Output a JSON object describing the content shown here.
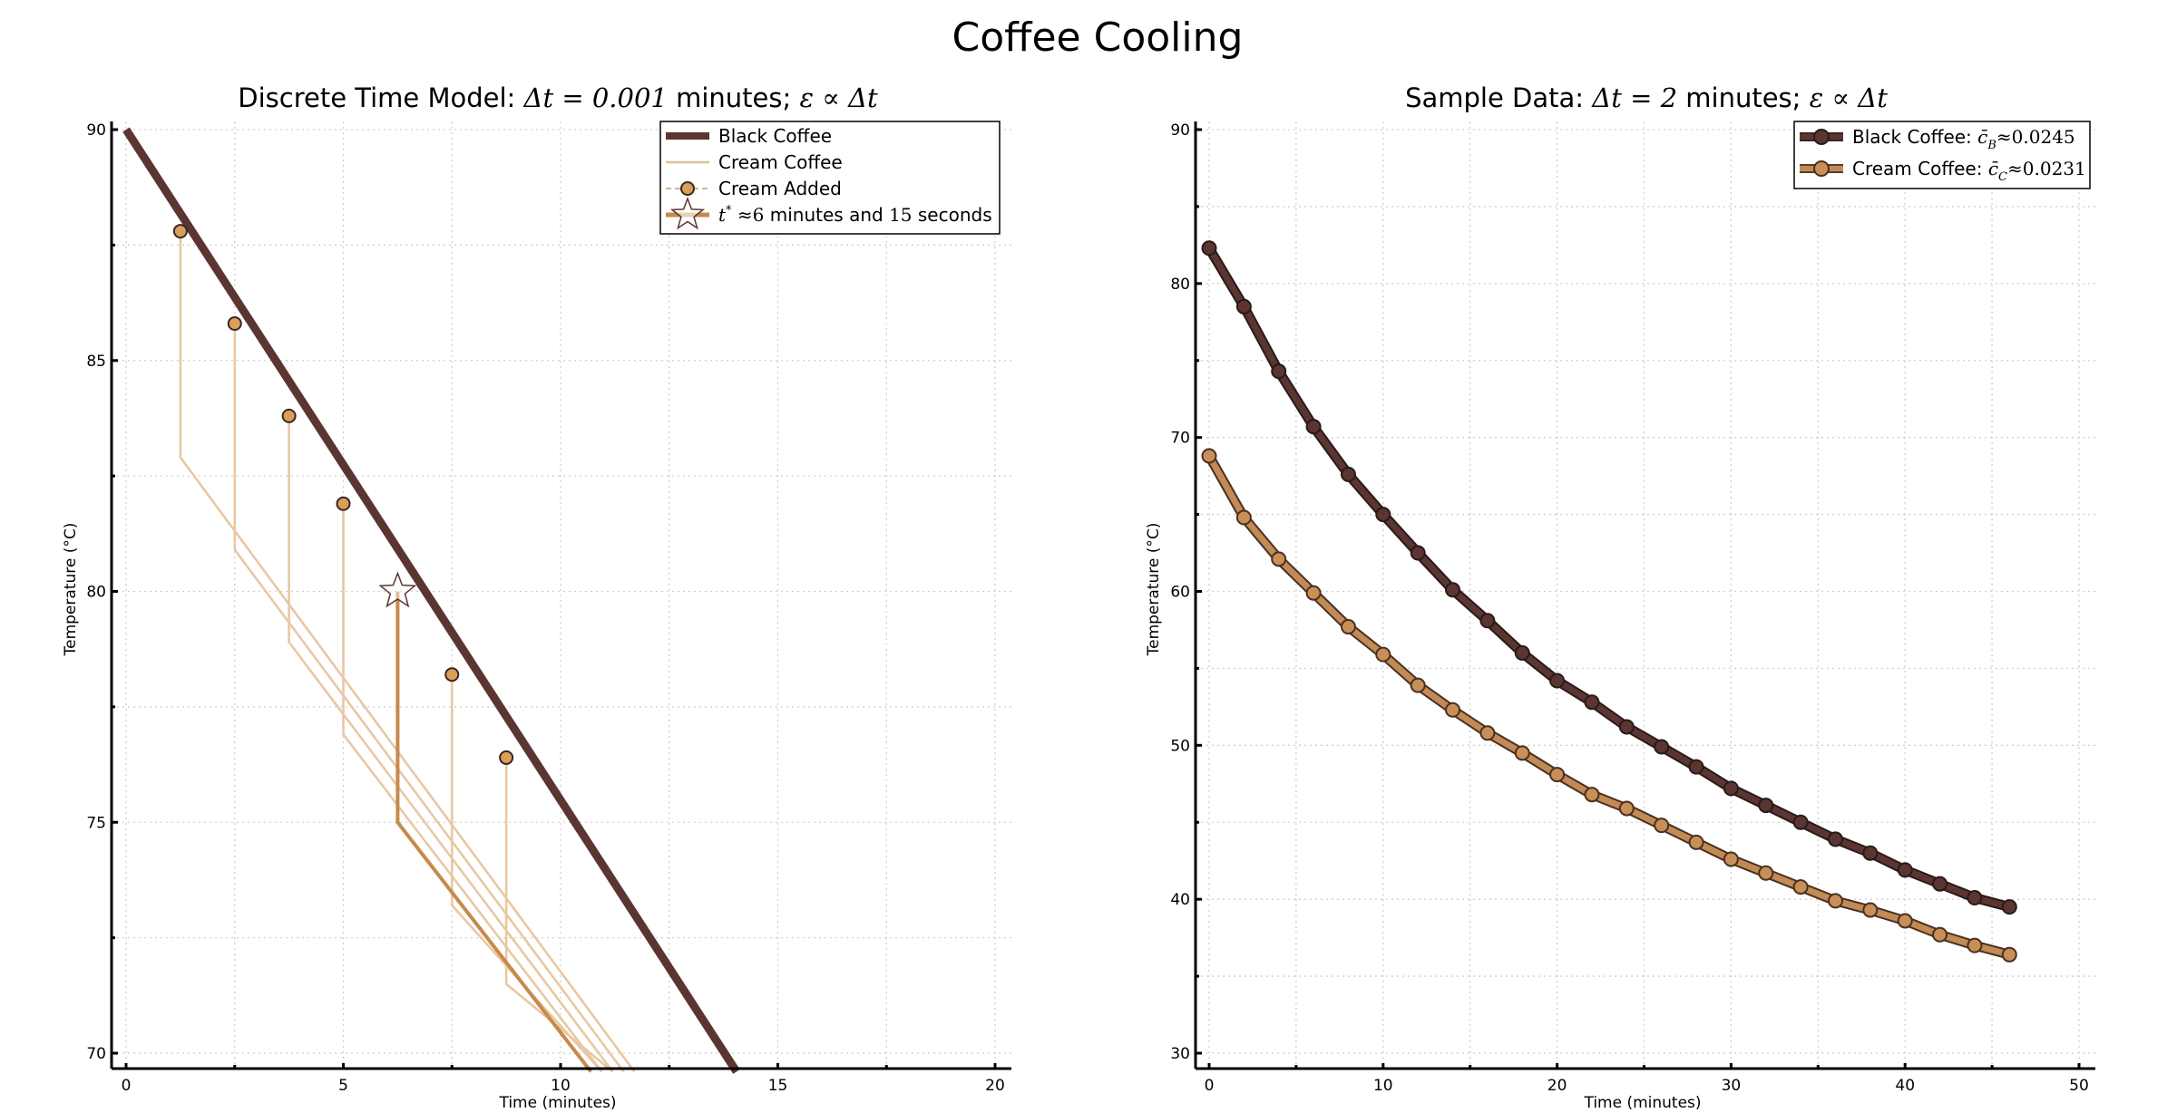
{
  "figure": {
    "title": "Coffee Cooling"
  },
  "chart_data": [
    {
      "type": "line",
      "title": "Discrete Time Model: Δt = 0.001 minutes; ε ∝ Δt",
      "title_parts": {
        "prefix": "Discrete Time Model: ",
        "math1": "Δt = 0.001",
        "middle": " minutes; ",
        "math2": "ε ∝ Δt"
      },
      "xlabel": "Time (minutes)",
      "ylabel": "Temperature (°C)",
      "xlim": [
        0,
        20
      ],
      "ylim": [
        70,
        90
      ],
      "x_ticks": [
        0,
        5,
        10,
        15,
        20
      ],
      "y_ticks": [
        70,
        75,
        80,
        85,
        90
      ],
      "grid": true,
      "legend_position": "top-right",
      "legend": [
        {
          "label": "Black Coffee",
          "key": "black"
        },
        {
          "label": "Cream Coffee",
          "key": "cream"
        },
        {
          "label": "Cream Added",
          "key": "added"
        },
        {
          "label": "t* ≈6 minutes and 15 seconds",
          "key": "star"
        }
      ],
      "colors": {
        "black": "#5a3532",
        "cream_light": "#e8c8a4",
        "cream_highlight": "#c68a4c",
        "marker_fill": "#d9a05a"
      },
      "black_coffee": {
        "x": [
          0,
          14.05
        ],
        "y": [
          90,
          69.6
        ]
      },
      "cream_added_points": {
        "x": [
          1.25,
          2.5,
          3.75,
          5.0,
          7.5,
          8.75
        ],
        "y": [
          87.8,
          85.8,
          83.8,
          81.9,
          78.2,
          76.4
        ]
      },
      "optimal_point": {
        "x": 6.25,
        "y": 80.0
      },
      "cream_coffee_curves": [
        {
          "add_time": 1.25,
          "before": 87.8,
          "after": 82.9,
          "end": [
            11.7,
            69.6
          ],
          "highlight": false
        },
        {
          "add_time": 2.5,
          "before": 85.8,
          "after": 80.9,
          "end": [
            11.45,
            69.6
          ],
          "highlight": false
        },
        {
          "add_time": 3.75,
          "before": 83.8,
          "after": 78.9,
          "end": [
            11.2,
            69.6
          ],
          "highlight": false
        },
        {
          "add_time": 5.0,
          "before": 81.9,
          "after": 76.9,
          "end": [
            10.95,
            69.6
          ],
          "highlight": false
        },
        {
          "add_time": 6.25,
          "before": 80.0,
          "after": 75.0,
          "end": [
            10.7,
            69.6
          ],
          "highlight": true
        },
        {
          "add_time": 7.5,
          "before": 78.2,
          "after": 73.2,
          "end": [
            10.95,
            69.6
          ],
          "highlight": false
        },
        {
          "add_time": 8.75,
          "before": 76.4,
          "after": 71.5,
          "end": [
            11.2,
            69.6
          ],
          "highlight": false
        }
      ]
    },
    {
      "type": "line",
      "title": "Sample Data: Δt = 2 minutes; ε ∝ Δt",
      "title_parts": {
        "prefix": "Sample Data: ",
        "math1": "Δt = 2",
        "middle": " minutes; ",
        "math2": "ε ∝ Δt"
      },
      "xlabel": "Time (minutes)",
      "ylabel": "Temperature (°C)",
      "xlim": [
        0,
        50
      ],
      "ylim": [
        30,
        90
      ],
      "x_ticks": [
        0,
        10,
        20,
        30,
        40,
        50
      ],
      "y_ticks": [
        30,
        40,
        50,
        60,
        70,
        80,
        90
      ],
      "grid": true,
      "legend_position": "top-right",
      "x": [
        0,
        2,
        4,
        6,
        8,
        10,
        12,
        14,
        16,
        18,
        20,
        22,
        24,
        26,
        28,
        30,
        32,
        34,
        36,
        38,
        40,
        42,
        44,
        46
      ],
      "series": [
        {
          "name": "Black Coffee",
          "legend_label": "Black Coffee: c̄_B ≈ 0.0245",
          "legend_prefix": "Black Coffee: ",
          "legend_math": "≈0.0245",
          "legend_sub": "B",
          "color": "#5a3532",
          "values": [
            82.3,
            78.5,
            74.3,
            70.7,
            67.6,
            65.0,
            62.5,
            60.1,
            58.1,
            56.0,
            54.2,
            52.8,
            51.2,
            49.9,
            48.6,
            47.2,
            46.1,
            45.0,
            43.9,
            43.0,
            41.9,
            41.0,
            40.1,
            39.5
          ]
        },
        {
          "name": "Cream Coffee",
          "legend_label": "Cream Coffee: c̄_C ≈ 0.0231",
          "legend_prefix": "Cream Coffee: ",
          "legend_math": "≈0.0231",
          "legend_sub": "C",
          "color": "#b07a48",
          "values": [
            68.8,
            64.8,
            62.1,
            59.9,
            57.7,
            55.9,
            53.9,
            52.3,
            50.8,
            49.5,
            48.1,
            46.8,
            45.9,
            44.8,
            43.7,
            42.6,
            41.7,
            40.8,
            39.9,
            39.3,
            38.6,
            37.7,
            37.0,
            36.4
          ]
        }
      ]
    }
  ]
}
